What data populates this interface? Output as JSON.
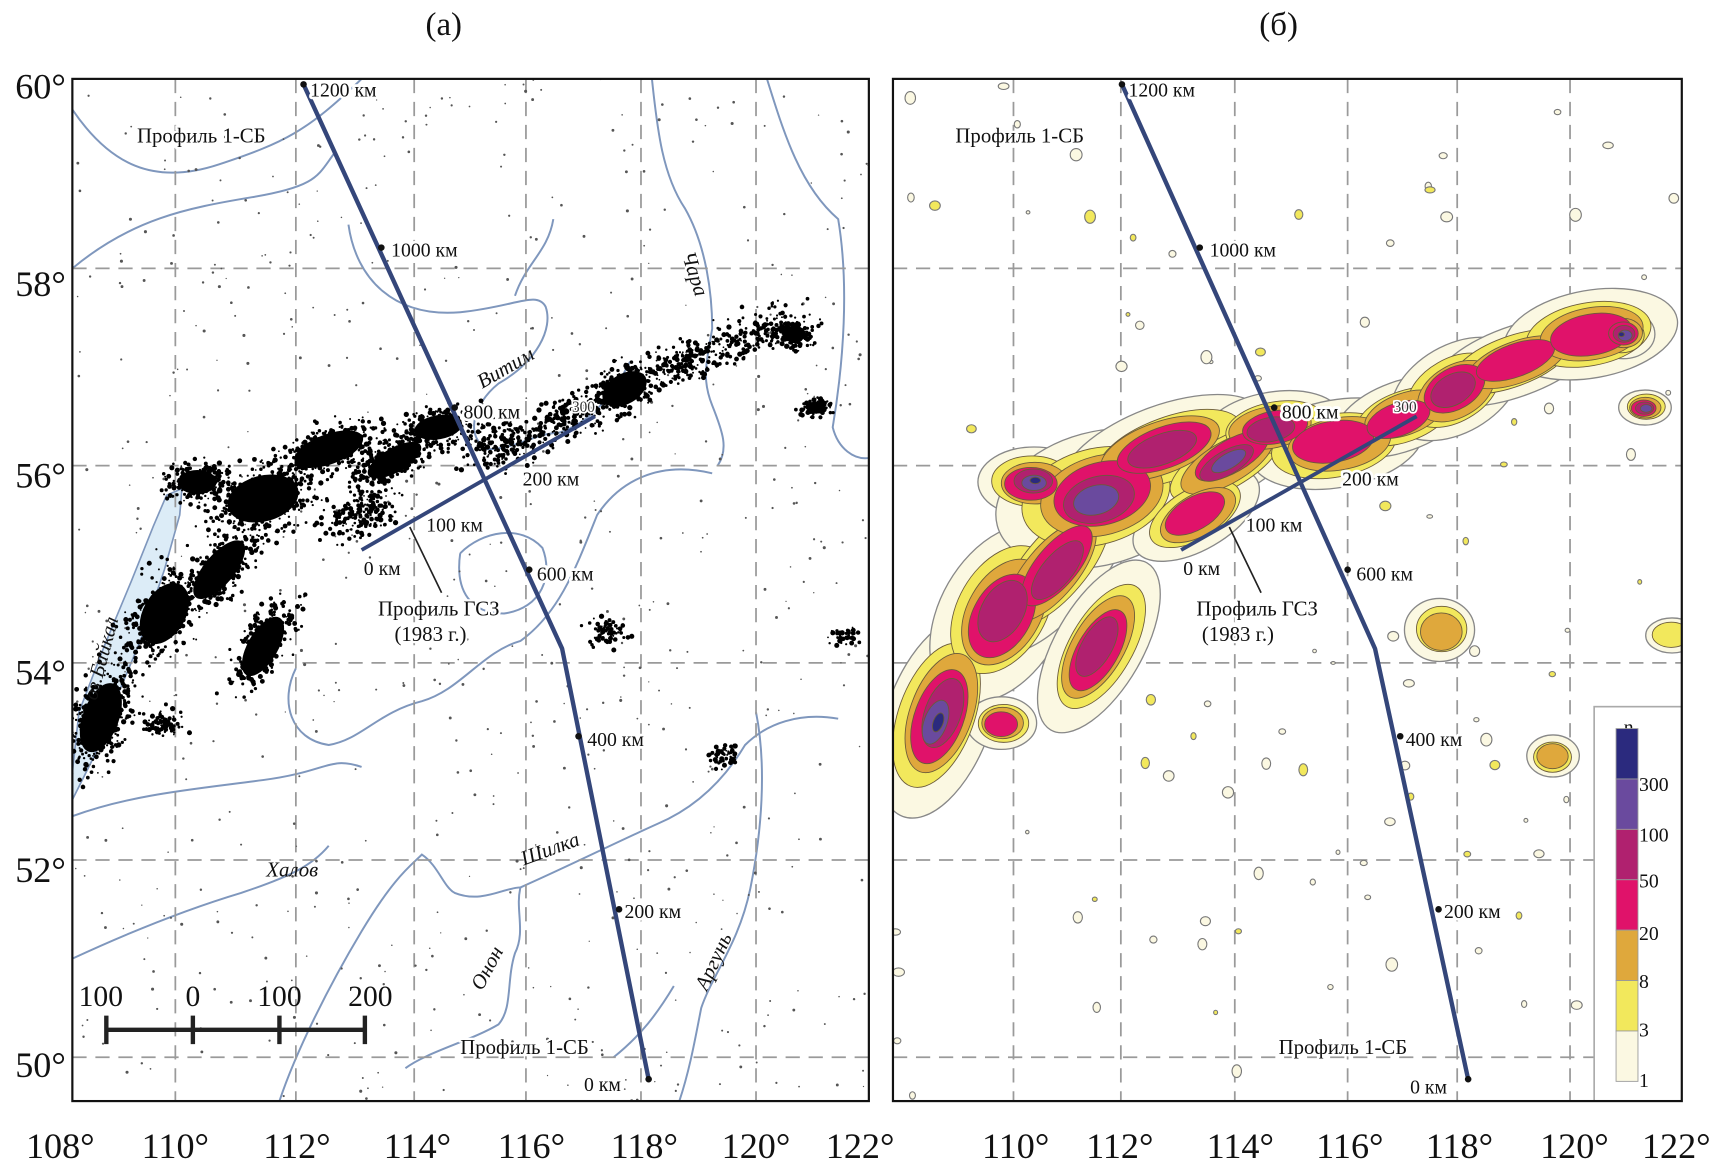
{
  "panel_a": {
    "title": "(a)",
    "lat_labels": [
      "60°",
      "58°",
      "56°",
      "54°",
      "52°",
      "50°"
    ],
    "lon_labels": [
      "108°",
      "110°",
      "112°",
      "114°",
      "116°",
      "118°",
      "120°",
      "122°"
    ],
    "profile_1sb": {
      "label_top": "Профиль 1-СБ",
      "label_bottom": "Профиль 1-СБ",
      "ticks": [
        "1200 км",
        "1000 км",
        "800 км",
        "600 км",
        "400 км",
        "200 км",
        "0 км"
      ]
    },
    "profile_gsz": {
      "label": "Профиль ГСЗ",
      "year": "(1983 г.)",
      "ticks": [
        "0 км",
        "100 км",
        "200 км",
        "300"
      ]
    },
    "rivers": [
      "Витим",
      "Чара",
      "Шилка",
      "Онон",
      "Аргунь",
      "Халов",
      "оз.Байкал"
    ],
    "scale_bar": [
      "100",
      "0",
      "100",
      "200"
    ]
  },
  "panel_b": {
    "title": "(б)",
    "lon_labels": [
      "110°",
      "112°",
      "114°",
      "116°",
      "118°",
      "120°",
      "122°"
    ],
    "profile_1sb": {
      "label_top": "Профиль 1-СБ",
      "label_bottom": "Профиль 1-СБ",
      "ticks": [
        "1200 км",
        "1000 км",
        "800 км",
        "600 км",
        "400 км",
        "200 км",
        "0 км"
      ]
    },
    "profile_gsz": {
      "label": "Профиль ГСЗ",
      "year": "(1983 г.)",
      "ticks": [
        "0 км",
        "100 км",
        "200 км",
        "300"
      ]
    },
    "legend": {
      "title": "n",
      "levels": [
        "300",
        "100",
        "50",
        "20",
        "8",
        "3",
        "1"
      ],
      "colors": [
        "#2b2a7e",
        "#6a4a9e",
        "#b0216f",
        "#e0126a",
        "#dfa83c",
        "#f2e85c",
        "#fbf8e2"
      ]
    }
  },
  "colors": {
    "profile": "#34467a",
    "river": "#7f97bd",
    "lake": "#dcecf7",
    "seismicity": "#000000"
  }
}
